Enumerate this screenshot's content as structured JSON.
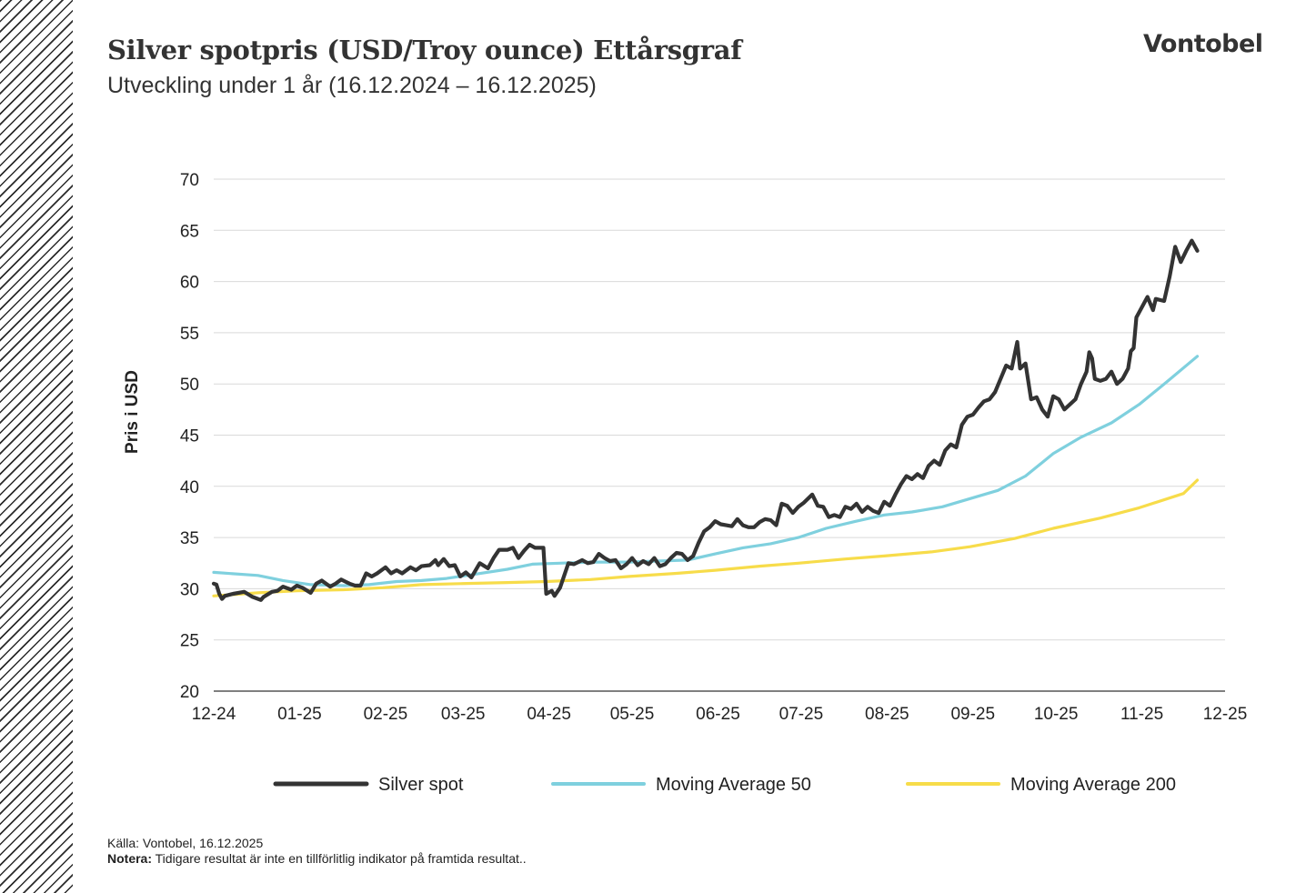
{
  "header": {
    "title": "Silver spotpris (USD/Troy ounce) Ettårsgraf",
    "subtitle": "Utveckling under 1 år (16.12.2024 – 16.12.2025)",
    "logo": "Vontobel"
  },
  "footer": {
    "source": "Källa: Vontobel, 16.12.2025",
    "note_label": "Notera:",
    "note_text": " Tidigare resultat är inte en tillförlitlig indikator på framtida resultat.."
  },
  "chart_data": {
    "type": "line",
    "title": "Silver spotpris (USD/Troy ounce) Ettårsgraf",
    "subtitle": "Utveckling under 1 år (16.12.2024 – 16.12.2025)",
    "xlabel": "",
    "ylabel": "Pris i USD",
    "ylim": [
      20,
      70
    ],
    "yticks": [
      20,
      25,
      30,
      35,
      40,
      45,
      50,
      55,
      60,
      65,
      70
    ],
    "xlim": [
      "2024-12-16",
      "2025-12-16"
    ],
    "xticks": [
      {
        "date": "2024-12-16",
        "label": "12-24"
      },
      {
        "date": "2025-01-16",
        "label": "01-25"
      },
      {
        "date": "2025-02-16",
        "label": "02-25"
      },
      {
        "date": "2025-03-16",
        "label": "03-25"
      },
      {
        "date": "2025-04-16",
        "label": "04-25"
      },
      {
        "date": "2025-05-16",
        "label": "05-25"
      },
      {
        "date": "2025-06-16",
        "label": "06-25"
      },
      {
        "date": "2025-07-16",
        "label": "07-25"
      },
      {
        "date": "2025-08-16",
        "label": "08-25"
      },
      {
        "date": "2025-09-16",
        "label": "09-25"
      },
      {
        "date": "2025-10-16",
        "label": "10-25"
      },
      {
        "date": "2025-11-16",
        "label": "11-25"
      },
      {
        "date": "2025-12-16",
        "label": "12-25"
      }
    ],
    "grid": "horizontal",
    "legend": "bottom",
    "series": [
      {
        "name": "Silver spot",
        "color": "#333333",
        "points": [
          [
            "2024-12-16",
            30.5
          ],
          [
            "2024-12-17",
            30.4
          ],
          [
            "2024-12-18",
            29.5
          ],
          [
            "2024-12-19",
            29.0
          ],
          [
            "2024-12-20",
            29.3
          ],
          [
            "2024-12-23",
            29.5
          ],
          [
            "2024-12-27",
            29.7
          ],
          [
            "2024-12-30",
            29.2
          ],
          [
            "2025-01-02",
            28.9
          ],
          [
            "2025-01-03",
            29.2
          ],
          [
            "2025-01-06",
            29.7
          ],
          [
            "2025-01-08",
            29.8
          ],
          [
            "2025-01-10",
            30.2
          ],
          [
            "2025-01-13",
            29.9
          ],
          [
            "2025-01-15",
            30.3
          ],
          [
            "2025-01-17",
            30.1
          ],
          [
            "2025-01-20",
            29.6
          ],
          [
            "2025-01-22",
            30.5
          ],
          [
            "2025-01-24",
            30.8
          ],
          [
            "2025-01-27",
            30.2
          ],
          [
            "2025-01-29",
            30.5
          ],
          [
            "2025-01-31",
            30.9
          ],
          [
            "2025-02-03",
            30.5
          ],
          [
            "2025-02-05",
            30.3
          ],
          [
            "2025-02-07",
            30.3
          ],
          [
            "2025-02-09",
            31.5
          ],
          [
            "2025-02-11",
            31.2
          ],
          [
            "2025-02-13",
            31.5
          ],
          [
            "2025-02-16",
            32.1
          ],
          [
            "2025-02-18",
            31.5
          ],
          [
            "2025-02-20",
            31.8
          ],
          [
            "2025-02-22",
            31.5
          ],
          [
            "2025-02-25",
            32.1
          ],
          [
            "2025-02-27",
            31.8
          ],
          [
            "2025-03-01",
            32.2
          ],
          [
            "2025-03-04",
            32.3
          ],
          [
            "2025-03-06",
            32.8
          ],
          [
            "2025-03-07",
            32.3
          ],
          [
            "2025-03-09",
            32.9
          ],
          [
            "2025-03-11",
            32.2
          ],
          [
            "2025-03-13",
            32.3
          ],
          [
            "2025-03-15",
            31.2
          ],
          [
            "2025-03-17",
            31.6
          ],
          [
            "2025-03-19",
            31.1
          ],
          [
            "2025-03-22",
            32.5
          ],
          [
            "2025-03-25",
            32.0
          ],
          [
            "2025-03-27",
            33.0
          ],
          [
            "2025-03-29",
            33.8
          ],
          [
            "2025-04-01",
            33.8
          ],
          [
            "2025-04-03",
            34.0
          ],
          [
            "2025-04-05",
            33.0
          ],
          [
            "2025-04-07",
            33.7
          ],
          [
            "2025-04-09",
            34.3
          ],
          [
            "2025-04-11",
            34.0
          ],
          [
            "2025-04-14",
            34.0
          ],
          [
            "2025-04-15",
            29.5
          ],
          [
            "2025-04-17",
            29.8
          ],
          [
            "2025-04-18",
            29.3
          ],
          [
            "2025-04-20",
            30.1
          ],
          [
            "2025-04-23",
            32.5
          ],
          [
            "2025-04-25",
            32.4
          ],
          [
            "2025-04-28",
            32.8
          ],
          [
            "2025-04-30",
            32.5
          ],
          [
            "2025-05-02",
            32.6
          ],
          [
            "2025-05-04",
            33.4
          ],
          [
            "2025-05-06",
            33.0
          ],
          [
            "2025-05-08",
            32.7
          ],
          [
            "2025-05-10",
            32.8
          ],
          [
            "2025-05-12",
            32.0
          ],
          [
            "2025-05-14",
            32.4
          ],
          [
            "2025-05-16",
            33.0
          ],
          [
            "2025-05-18",
            32.3
          ],
          [
            "2025-05-20",
            32.7
          ],
          [
            "2025-05-22",
            32.4
          ],
          [
            "2025-05-24",
            33.0
          ],
          [
            "2025-05-26",
            32.2
          ],
          [
            "2025-05-28",
            32.4
          ],
          [
            "2025-05-30",
            33.0
          ],
          [
            "2025-06-01",
            33.5
          ],
          [
            "2025-06-03",
            33.4
          ],
          [
            "2025-06-05",
            32.8
          ],
          [
            "2025-06-07",
            33.2
          ],
          [
            "2025-06-09",
            34.5
          ],
          [
            "2025-06-11",
            35.6
          ],
          [
            "2025-06-13",
            36.0
          ],
          [
            "2025-06-15",
            36.6
          ],
          [
            "2025-06-17",
            36.3
          ],
          [
            "2025-06-19",
            36.2
          ],
          [
            "2025-06-21",
            36.1
          ],
          [
            "2025-06-23",
            36.8
          ],
          [
            "2025-06-25",
            36.2
          ],
          [
            "2025-06-27",
            36.0
          ],
          [
            "2025-06-29",
            36.0
          ],
          [
            "2025-07-01",
            36.5
          ],
          [
            "2025-07-03",
            36.8
          ],
          [
            "2025-07-05",
            36.7
          ],
          [
            "2025-07-07",
            36.2
          ],
          [
            "2025-07-09",
            38.3
          ],
          [
            "2025-07-11",
            38.1
          ],
          [
            "2025-07-13",
            37.4
          ],
          [
            "2025-07-15",
            38.0
          ],
          [
            "2025-07-17",
            38.4
          ],
          [
            "2025-07-20",
            39.2
          ],
          [
            "2025-07-22",
            38.1
          ],
          [
            "2025-07-24",
            38.0
          ],
          [
            "2025-07-26",
            37.0
          ],
          [
            "2025-07-28",
            37.2
          ],
          [
            "2025-07-30",
            37.0
          ],
          [
            "2025-08-01",
            38.0
          ],
          [
            "2025-08-03",
            37.8
          ],
          [
            "2025-08-05",
            38.3
          ],
          [
            "2025-08-07",
            37.5
          ],
          [
            "2025-08-09",
            38.0
          ],
          [
            "2025-08-11",
            37.6
          ],
          [
            "2025-08-13",
            37.4
          ],
          [
            "2025-08-15",
            38.5
          ],
          [
            "2025-08-17",
            38.1
          ],
          [
            "2025-08-19",
            39.2
          ],
          [
            "2025-08-21",
            40.2
          ],
          [
            "2025-08-23",
            41.0
          ],
          [
            "2025-08-25",
            40.7
          ],
          [
            "2025-08-27",
            41.2
          ],
          [
            "2025-08-29",
            40.8
          ],
          [
            "2025-08-31",
            42.0
          ],
          [
            "2025-09-02",
            42.5
          ],
          [
            "2025-09-04",
            42.1
          ],
          [
            "2025-09-06",
            43.5
          ],
          [
            "2025-09-08",
            44.1
          ],
          [
            "2025-09-10",
            43.8
          ],
          [
            "2025-09-12",
            46.0
          ],
          [
            "2025-09-14",
            46.8
          ],
          [
            "2025-09-16",
            47.0
          ],
          [
            "2025-09-18",
            47.7
          ],
          [
            "2025-09-20",
            48.3
          ],
          [
            "2025-09-22",
            48.5
          ],
          [
            "2025-09-24",
            49.2
          ],
          [
            "2025-09-26",
            50.5
          ],
          [
            "2025-09-28",
            51.8
          ],
          [
            "2025-09-30",
            51.5
          ],
          [
            "2025-10-02",
            54.1
          ],
          [
            "2025-10-03",
            51.5
          ],
          [
            "2025-10-05",
            52.0
          ],
          [
            "2025-10-07",
            48.5
          ],
          [
            "2025-10-09",
            48.7
          ],
          [
            "2025-10-11",
            47.5
          ],
          [
            "2025-10-13",
            46.8
          ],
          [
            "2025-10-15",
            48.8
          ],
          [
            "2025-10-17",
            48.5
          ],
          [
            "2025-10-19",
            47.5
          ],
          [
            "2025-10-21",
            48.0
          ],
          [
            "2025-10-23",
            48.5
          ],
          [
            "2025-10-25",
            50.0
          ],
          [
            "2025-10-27",
            51.2
          ],
          [
            "2025-10-28",
            53.1
          ],
          [
            "2025-10-29",
            52.5
          ],
          [
            "2025-10-30",
            50.5
          ],
          [
            "2025-11-01",
            50.3
          ],
          [
            "2025-11-03",
            50.5
          ],
          [
            "2025-11-05",
            51.2
          ],
          [
            "2025-11-07",
            50.0
          ],
          [
            "2025-11-09",
            50.5
          ],
          [
            "2025-11-11",
            51.5
          ],
          [
            "2025-11-12",
            53.2
          ],
          [
            "2025-11-13",
            53.5
          ],
          [
            "2025-11-14",
            56.5
          ],
          [
            "2025-11-16",
            57.5
          ],
          [
            "2025-11-18",
            58.5
          ],
          [
            "2025-11-20",
            57.2
          ],
          [
            "2025-11-21",
            58.3
          ],
          [
            "2025-11-24",
            58.1
          ],
          [
            "2025-11-26",
            60.5
          ],
          [
            "2025-11-28",
            63.4
          ],
          [
            "2025-11-30",
            61.9
          ],
          [
            "2025-12-02",
            63.0
          ],
          [
            "2025-12-04",
            64.0
          ],
          [
            "2025-12-06",
            63.0
          ]
        ]
      },
      {
        "name": "Moving Average 50",
        "color": "#7fd0de",
        "points": [
          [
            "2024-12-16",
            31.6
          ],
          [
            "2025-01-01",
            31.3
          ],
          [
            "2025-01-10",
            30.8
          ],
          [
            "2025-01-20",
            30.4
          ],
          [
            "2025-02-01",
            30.3
          ],
          [
            "2025-02-10",
            30.4
          ],
          [
            "2025-02-20",
            30.7
          ],
          [
            "2025-03-01",
            30.8
          ],
          [
            "2025-03-10",
            31.0
          ],
          [
            "2025-03-20",
            31.4
          ],
          [
            "2025-04-01",
            31.9
          ],
          [
            "2025-04-10",
            32.4
          ],
          [
            "2025-04-20",
            32.5
          ],
          [
            "2025-05-01",
            32.6
          ],
          [
            "2025-05-15",
            32.6
          ],
          [
            "2025-05-25",
            32.7
          ],
          [
            "2025-06-05",
            32.8
          ],
          [
            "2025-06-15",
            33.4
          ],
          [
            "2025-06-25",
            34.0
          ],
          [
            "2025-07-05",
            34.4
          ],
          [
            "2025-07-15",
            35.0
          ],
          [
            "2025-07-25",
            35.9
          ],
          [
            "2025-08-05",
            36.6
          ],
          [
            "2025-08-15",
            37.2
          ],
          [
            "2025-08-25",
            37.5
          ],
          [
            "2025-09-05",
            38.0
          ],
          [
            "2025-09-15",
            38.8
          ],
          [
            "2025-09-25",
            39.6
          ],
          [
            "2025-10-05",
            41.0
          ],
          [
            "2025-10-15",
            43.2
          ],
          [
            "2025-10-25",
            44.8
          ],
          [
            "2025-11-05",
            46.2
          ],
          [
            "2025-11-15",
            48.0
          ],
          [
            "2025-11-25",
            50.2
          ],
          [
            "2025-12-06",
            52.7
          ]
        ]
      },
      {
        "name": "Moving Average 200",
        "color": "#f7dc4a",
        "points": [
          [
            "2024-12-16",
            29.3
          ],
          [
            "2025-01-01",
            29.6
          ],
          [
            "2025-01-15",
            29.8
          ],
          [
            "2025-02-01",
            29.9
          ],
          [
            "2025-02-15",
            30.1
          ],
          [
            "2025-03-01",
            30.4
          ],
          [
            "2025-03-15",
            30.5
          ],
          [
            "2025-04-01",
            30.6
          ],
          [
            "2025-04-15",
            30.7
          ],
          [
            "2025-05-01",
            30.9
          ],
          [
            "2025-05-15",
            31.2
          ],
          [
            "2025-06-01",
            31.5
          ],
          [
            "2025-06-15",
            31.8
          ],
          [
            "2025-07-01",
            32.2
          ],
          [
            "2025-07-15",
            32.5
          ],
          [
            "2025-08-01",
            32.9
          ],
          [
            "2025-08-15",
            33.2
          ],
          [
            "2025-09-01",
            33.6
          ],
          [
            "2025-09-15",
            34.1
          ],
          [
            "2025-10-01",
            34.9
          ],
          [
            "2025-10-15",
            35.9
          ],
          [
            "2025-11-01",
            36.9
          ],
          [
            "2025-11-15",
            37.9
          ],
          [
            "2025-12-01",
            39.3
          ],
          [
            "2025-12-06",
            40.6
          ]
        ]
      }
    ]
  }
}
